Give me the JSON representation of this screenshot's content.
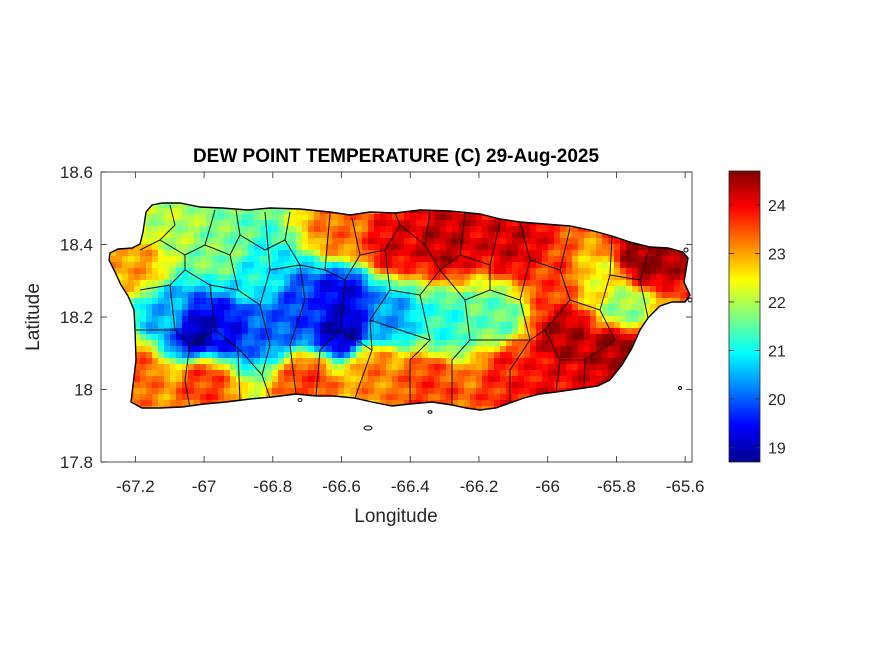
{
  "chart_data": {
    "type": "heatmap",
    "title": "DEW POINT TEMPERATURE (C) 29-Aug-2025",
    "xlabel": "Longitude",
    "ylabel": "Latitude",
    "xlim": [
      -67.3,
      -65.58
    ],
    "ylim": [
      17.8,
      18.6
    ],
    "x_ticks": [
      {
        "value": -67.2,
        "label": "-67.2"
      },
      {
        "value": -67.0,
        "label": "-67"
      },
      {
        "value": -66.8,
        "label": "-66.8"
      },
      {
        "value": -66.6,
        "label": "-66.6"
      },
      {
        "value": -66.4,
        "label": "-66.4"
      },
      {
        "value": -66.2,
        "label": "-66.2"
      },
      {
        "value": -66.0,
        "label": "-66"
      },
      {
        "value": -65.8,
        "label": "-65.8"
      },
      {
        "value": -65.6,
        "label": "-65.6"
      }
    ],
    "y_ticks": [
      {
        "value": 17.8,
        "label": "17.8"
      },
      {
        "value": 18.0,
        "label": "18"
      },
      {
        "value": 18.2,
        "label": "18.2"
      },
      {
        "value": 18.4,
        "label": "18.4"
      },
      {
        "value": 18.6,
        "label": "18.6"
      }
    ],
    "colorbar": {
      "colormap": "jet",
      "range": [
        18.7,
        24.7
      ],
      "ticks": [
        {
          "value": 19,
          "label": "19"
        },
        {
          "value": 20,
          "label": "20"
        },
        {
          "value": 21,
          "label": "21"
        },
        {
          "value": 22,
          "label": "22"
        },
        {
          "value": 23,
          "label": "23"
        },
        {
          "value": 24,
          "label": "24"
        }
      ]
    },
    "field_anchors": [
      {
        "lon": -67.02,
        "lat": 18.16,
        "value": 18.9
      },
      {
        "lon": -66.94,
        "lat": 18.17,
        "value": 19.4
      },
      {
        "lon": -66.6,
        "lat": 18.17,
        "value": 19.0
      },
      {
        "lon": -66.6,
        "lat": 18.25,
        "value": 19.3
      },
      {
        "lon": -66.72,
        "lat": 18.22,
        "value": 19.8
      },
      {
        "lon": -66.82,
        "lat": 18.18,
        "value": 20.0
      },
      {
        "lon": -66.46,
        "lat": 18.2,
        "value": 20.4
      },
      {
        "lon": -67.1,
        "lat": 18.2,
        "value": 20.5
      },
      {
        "lon": -66.85,
        "lat": 18.3,
        "value": 21.0
      },
      {
        "lon": -66.3,
        "lat": 18.18,
        "value": 21.2
      },
      {
        "lon": -66.15,
        "lat": 18.2,
        "value": 21.5
      },
      {
        "lon": -66.96,
        "lat": 18.38,
        "value": 21.7
      },
      {
        "lon": -67.1,
        "lat": 18.45,
        "value": 22.0
      },
      {
        "lon": -67.2,
        "lat": 18.35,
        "value": 23.0
      },
      {
        "lon": -67.2,
        "lat": 18.05,
        "value": 23.4
      },
      {
        "lon": -67.0,
        "lat": 18.02,
        "value": 23.6
      },
      {
        "lon": -66.7,
        "lat": 18.02,
        "value": 23.6
      },
      {
        "lon": -66.5,
        "lat": 18.05,
        "value": 23.2
      },
      {
        "lon": -66.35,
        "lat": 18.02,
        "value": 23.6
      },
      {
        "lon": -66.1,
        "lat": 18.05,
        "value": 23.8
      },
      {
        "lon": -66.6,
        "lat": 18.44,
        "value": 23.3
      },
      {
        "lon": -66.45,
        "lat": 18.4,
        "value": 24.1
      },
      {
        "lon": -66.3,
        "lat": 18.4,
        "value": 24.3
      },
      {
        "lon": -66.1,
        "lat": 18.4,
        "value": 24.2
      },
      {
        "lon": -65.98,
        "lat": 18.3,
        "value": 23.6
      },
      {
        "lon": -65.85,
        "lat": 18.3,
        "value": 22.5
      },
      {
        "lon": -65.78,
        "lat": 18.22,
        "value": 21.8
      },
      {
        "lon": -65.72,
        "lat": 18.36,
        "value": 24.6
      },
      {
        "lon": -65.8,
        "lat": 18.12,
        "value": 24.5
      },
      {
        "lon": -65.95,
        "lat": 18.15,
        "value": 24.4
      },
      {
        "lon": -66.0,
        "lat": 18.0,
        "value": 24.0
      }
    ]
  }
}
